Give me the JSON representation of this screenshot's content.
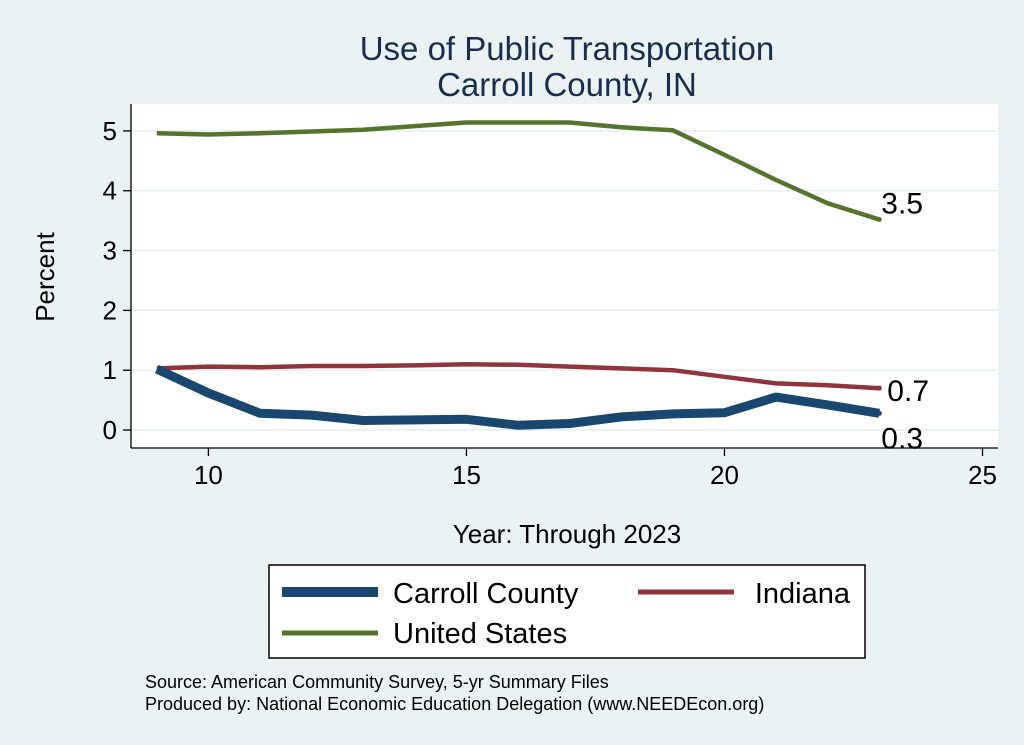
{
  "chart_data": {
    "type": "line",
    "title": "Use of Public Transportation",
    "subtitle": "Carroll County, IN",
    "xlabel": "Year: Through 2023",
    "ylabel": "Percent",
    "xlim": [
      8.5,
      25.3
    ],
    "ylim": [
      -0.3,
      5.45
    ],
    "xticks": [
      10,
      15,
      20,
      25
    ],
    "yticks": [
      0,
      1,
      2,
      3,
      4,
      5
    ],
    "grid": true,
    "legend_position": "bottom",
    "x": [
      9,
      10,
      11,
      12,
      13,
      14,
      15,
      16,
      17,
      18,
      19,
      20,
      21,
      22,
      23
    ],
    "series": [
      {
        "name": "Carroll County",
        "color": "#1a476f",
        "line_width": 9,
        "values": [
          1.02,
          0.62,
          0.28,
          0.25,
          0.16,
          0.17,
          0.18,
          0.08,
          0.11,
          0.22,
          0.27,
          0.29,
          0.55,
          0.42,
          0.28
        ],
        "end_label": "0.3"
      },
      {
        "name": "Indiana",
        "color": "#90353b",
        "line_width": 4.5,
        "values": [
          1.03,
          1.06,
          1.05,
          1.07,
          1.07,
          1.08,
          1.1,
          1.09,
          1.06,
          1.03,
          1.0,
          0.89,
          0.78,
          0.75,
          0.7
        ],
        "end_label": "0.7"
      },
      {
        "name": "United States",
        "color": "#55752f",
        "line_width": 4.5,
        "values": [
          4.96,
          4.94,
          4.96,
          4.99,
          5.02,
          5.08,
          5.14,
          5.14,
          5.14,
          5.06,
          5.01,
          4.6,
          4.18,
          3.79,
          3.52
        ],
        "end_label": "3.5"
      }
    ]
  },
  "source": {
    "line1": "Source: American Community Survey, 5-yr Summary Files",
    "line2": "Produced by: National Economic Education Delegation (www.NEEDEcon.org)"
  },
  "colors": {
    "background": "#eaf2f3",
    "plot_background": "#ffffff",
    "gridline": "#e6eef0",
    "title": "#1a2d4f"
  }
}
